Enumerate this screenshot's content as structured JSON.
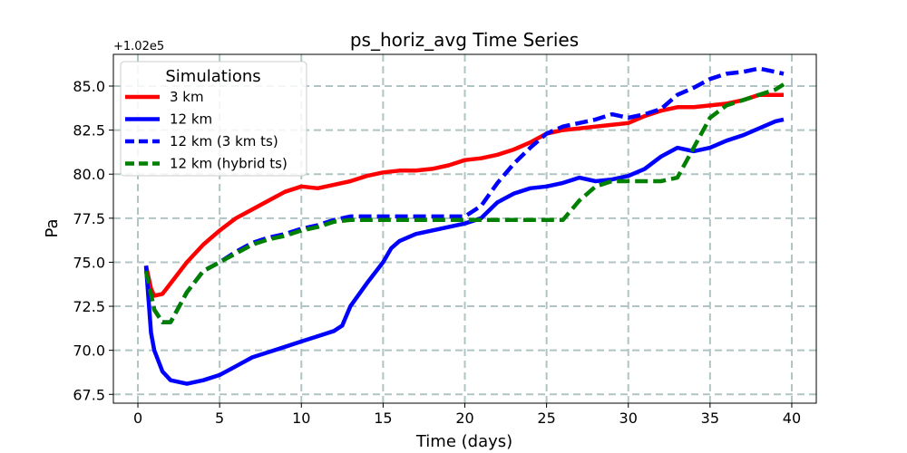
{
  "chart_data": {
    "type": "line",
    "title": "ps_horiz_avg Time Series",
    "xlabel": "Time (days)",
    "ylabel": "Pa",
    "offset_label": "+1.02e5",
    "xlim": [
      -1.5,
      41.5
    ],
    "ylim": [
      67.0,
      86.8
    ],
    "xticks": [
      0,
      5,
      10,
      15,
      20,
      25,
      30,
      35,
      40
    ],
    "yticks": [
      67.5,
      70.0,
      72.5,
      75.0,
      77.5,
      80.0,
      82.5,
      85.0
    ],
    "xtick_labels": [
      "0",
      "5",
      "10",
      "15",
      "20",
      "25",
      "30",
      "35",
      "40"
    ],
    "ytick_labels": [
      "67.5",
      "70.0",
      "72.5",
      "75.0",
      "77.5",
      "80.0",
      "82.5",
      "85.0"
    ],
    "grid": true,
    "legend": {
      "title": "Simulations",
      "position": "upper-left"
    },
    "series": [
      {
        "name": "3 km",
        "color": "#ff0000",
        "style": "solid",
        "x": [
          0.5,
          0.8,
          1.0,
          1.5,
          2.0,
          3.0,
          4.0,
          5.0,
          6.0,
          7.0,
          8.0,
          9.0,
          10.0,
          11.0,
          12.0,
          13.0,
          14.0,
          15.0,
          16.0,
          17.0,
          18.0,
          19.0,
          20.0,
          21.0,
          22.0,
          23.0,
          24.0,
          25.0,
          26.0,
          27.0,
          28.0,
          29.0,
          30.0,
          31.0,
          32.0,
          33.0,
          34.0,
          35.0,
          36.0,
          37.0,
          38.0,
          39.0,
          39.5
        ],
        "y": [
          74.8,
          73.5,
          73.1,
          73.2,
          73.8,
          75.0,
          76.0,
          76.8,
          77.5,
          78.0,
          78.5,
          79.0,
          79.3,
          79.2,
          79.4,
          79.6,
          79.9,
          80.1,
          80.2,
          80.2,
          80.3,
          80.5,
          80.8,
          80.9,
          81.1,
          81.4,
          81.8,
          82.3,
          82.5,
          82.6,
          82.7,
          82.8,
          82.9,
          83.3,
          83.6,
          83.8,
          83.8,
          83.9,
          84.0,
          84.2,
          84.5,
          84.5,
          84.5
        ]
      },
      {
        "name": "12 km",
        "color": "#0000ff",
        "style": "solid",
        "x": [
          0.5,
          0.8,
          1.0,
          1.5,
          2.0,
          3.0,
          4.0,
          5.0,
          6.0,
          7.0,
          8.0,
          9.0,
          10.0,
          11.0,
          12.0,
          12.5,
          13.0,
          14.0,
          15.0,
          15.5,
          16.0,
          17.0,
          18.0,
          19.0,
          20.0,
          21.0,
          22.0,
          23.0,
          24.0,
          25.0,
          26.0,
          27.0,
          28.0,
          29.0,
          30.0,
          31.0,
          32.0,
          33.0,
          34.0,
          35.0,
          36.0,
          37.0,
          38.0,
          39.0,
          39.5
        ],
        "y": [
          74.8,
          71.0,
          70.0,
          68.8,
          68.3,
          68.1,
          68.3,
          68.6,
          69.1,
          69.6,
          69.9,
          70.2,
          70.5,
          70.8,
          71.1,
          71.4,
          72.5,
          73.8,
          75.0,
          75.8,
          76.2,
          76.6,
          76.8,
          77.0,
          77.2,
          77.5,
          78.4,
          78.9,
          79.2,
          79.3,
          79.5,
          79.8,
          79.6,
          79.7,
          79.9,
          80.3,
          81.0,
          81.5,
          81.3,
          81.5,
          81.9,
          82.2,
          82.6,
          83.0,
          83.1
        ]
      },
      {
        "name": "12 km (3 km ts)",
        "color": "#0000ff",
        "style": "dashed",
        "x": [
          0.5,
          1.0,
          1.5,
          2.0,
          3.0,
          4.0,
          5.0,
          6.0,
          7.0,
          8.0,
          9.0,
          10.0,
          11.0,
          12.0,
          13.0,
          14.0,
          15.0,
          16.0,
          17.0,
          18.0,
          19.0,
          20.0,
          21.0,
          22.0,
          23.0,
          24.0,
          25.0,
          26.0,
          27.0,
          28.0,
          29.0,
          30.0,
          31.0,
          32.0,
          33.0,
          34.0,
          35.0,
          36.0,
          37.0,
          38.0,
          39.0,
          39.5
        ],
        "y": [
          74.5,
          72.3,
          71.6,
          71.6,
          73.3,
          74.5,
          75.0,
          75.6,
          76.1,
          76.4,
          76.6,
          76.9,
          77.1,
          77.4,
          77.6,
          77.6,
          77.6,
          77.6,
          77.6,
          77.6,
          77.6,
          77.6,
          78.2,
          79.5,
          80.6,
          81.5,
          82.3,
          82.7,
          82.9,
          83.1,
          83.4,
          83.2,
          83.4,
          83.7,
          84.5,
          84.9,
          85.4,
          85.7,
          85.8,
          86.0,
          85.8,
          85.7
        ]
      },
      {
        "name": "12 km (hybrid ts)",
        "color": "#008000",
        "style": "dashed",
        "x": [
          0.5,
          1.0,
          1.5,
          2.0,
          3.0,
          4.0,
          5.0,
          6.0,
          7.0,
          8.0,
          9.0,
          10.0,
          11.0,
          12.0,
          13.0,
          14.0,
          15.0,
          16.0,
          17.0,
          18.0,
          19.0,
          20.0,
          21.0,
          22.0,
          23.0,
          24.0,
          25.0,
          26.0,
          27.0,
          28.0,
          29.0,
          30.0,
          31.0,
          32.0,
          33.0,
          34.0,
          35.0,
          36.0,
          37.0,
          38.0,
          39.0,
          39.5
        ],
        "y": [
          74.5,
          72.3,
          71.6,
          71.6,
          73.3,
          74.5,
          75.0,
          75.5,
          76.0,
          76.3,
          76.5,
          76.8,
          77.0,
          77.3,
          77.4,
          77.4,
          77.4,
          77.4,
          77.4,
          77.4,
          77.4,
          77.4,
          77.4,
          77.4,
          77.4,
          77.4,
          77.4,
          77.4,
          78.5,
          79.3,
          79.6,
          79.6,
          79.6,
          79.6,
          79.8,
          81.5,
          83.2,
          83.9,
          84.2,
          84.5,
          84.8,
          85.1
        ]
      }
    ]
  }
}
